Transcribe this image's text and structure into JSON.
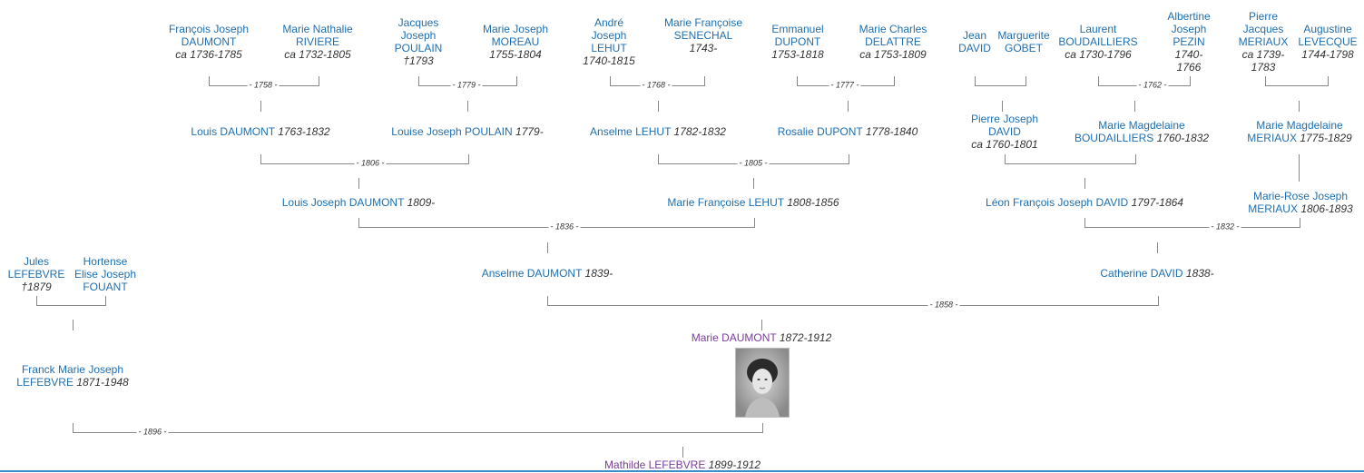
{
  "people": {
    "p1": {
      "name": "François Joseph DAUMONT",
      "dates": "ca 1736-1785"
    },
    "p2": {
      "name": "Marie Nathalie RIVIERE",
      "dates": "ca 1732-1805"
    },
    "p3": {
      "name": "Jacques Joseph POULAIN",
      "dates": "†1793"
    },
    "p4": {
      "name": "Marie Joseph MOREAU",
      "dates": "1755-1804"
    },
    "p5": {
      "name": "André Joseph LEHUT",
      "dates": "1740-1815"
    },
    "p6": {
      "name": "Marie Françoise SENECHAL",
      "dates": "1743-"
    },
    "p7": {
      "name": "Emmanuel DUPONT",
      "dates": "1753-1818"
    },
    "p8": {
      "name": "Marie Charles DELATTRE",
      "dates": "ca 1753-1809"
    },
    "p9": {
      "name": "Jean DAVID",
      "dates": ""
    },
    "p10": {
      "name": "Marguerite GOBET",
      "dates": ""
    },
    "p11": {
      "name": "Laurent BOUDAILLIERS",
      "dates": "ca 1730-1796"
    },
    "p12": {
      "name": "Albertine Joseph PEZIN",
      "dates": "1740-1766"
    },
    "p13": {
      "name": "Pierre Jacques MERIAUX",
      "dates": "ca 1739-1783"
    },
    "p14": {
      "name": "Augustine LEVECQUE",
      "dates": "1744-1798"
    },
    "l1": {
      "name": "Louis DAUMONT",
      "dates": "1763-1832"
    },
    "l2": {
      "name": "Louise Joseph POULAIN",
      "dates": "1779-"
    },
    "l3": {
      "name": "Anselme LEHUT",
      "dates": "1782-1832"
    },
    "l4": {
      "name": "Rosalie DUPONT",
      "dates": "1778-1840"
    },
    "l5": {
      "name": "Pierre Joseph DAVID",
      "dates": "ca 1760-1801"
    },
    "l6": {
      "name": "Marie Magdelaine BOUDAILLIERS",
      "dates": "1760-1832"
    },
    "l7": {
      "name": "Marie Magdelaine MERIAUX",
      "dates": "1775-1829"
    },
    "g1": {
      "name": "Louis Joseph DAUMONT",
      "dates": "1809-"
    },
    "g2": {
      "name": "Marie Françoise LEHUT",
      "dates": "1808-1856"
    },
    "g3": {
      "name": "Léon François Joseph DAVID",
      "dates": "1797-1864"
    },
    "g4": {
      "name": "Marie-Rose Joseph MERIAUX",
      "dates": "1806-1893"
    },
    "h1": {
      "name": "Jules LEFEBVRE",
      "dates": "†1879"
    },
    "h2": {
      "name": "Hortense Elise Joseph FOUANT",
      "dates": ""
    },
    "h3": {
      "name": "Anselme DAUMONT",
      "dates": "1839-"
    },
    "h4": {
      "name": "Catherine DAVID",
      "dates": "1838-"
    },
    "k1": {
      "name": "Franck Marie Joseph LEFEBVRE",
      "dates": "1871-1948"
    },
    "k2": {
      "name": "Marie DAUMONT",
      "dates": "1872-1912"
    },
    "root": {
      "name": "Mathilde LEFEBVRE",
      "dates": "1899-1912"
    }
  },
  "marriages": {
    "m1758": "- 1758 -",
    "m1779": "- 1779 -",
    "m1768": "- 1768 -",
    "m1777": "- 1777 -",
    "m1762": "- 1762 -",
    "m1806": "- 1806 -",
    "m1805": "- 1805 -",
    "m1836": "- 1836 -",
    "m1832": "- 1832 -",
    "m1858": "- 1858 -",
    "m1896": "- 1896 -"
  },
  "colors": {
    "link": "#1f6fb0",
    "highlight": "#7a3d9a",
    "rule": "#3b8dc8"
  }
}
